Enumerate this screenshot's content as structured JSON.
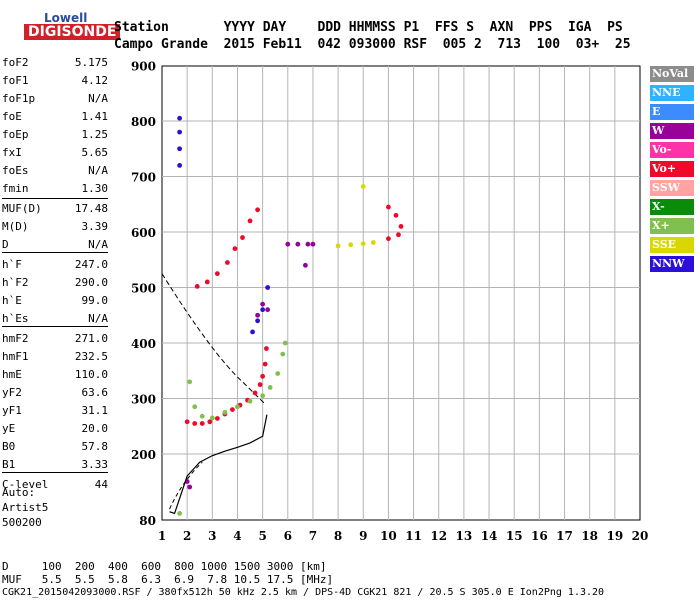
{
  "logo": {
    "top": "Lowell",
    "main": "DIGISONDE"
  },
  "header": {
    "line1": "Station       YYYY DAY    DDD HHMMSS P1  FFS S  AXN  PPS  IGA  PS",
    "line2": "Campo Grande  2015 Feb11  042 093000 RSF  005 2  713  100  03+  25"
  },
  "params": [
    {
      "name": "foF2",
      "value": "5.175"
    },
    {
      "name": "foF1",
      "value": "4.12"
    },
    {
      "name": "foF1p",
      "value": "N/A"
    },
    {
      "name": "foE",
      "value": "1.41"
    },
    {
      "name": "foEp",
      "value": "1.25"
    },
    {
      "name": "fxI",
      "value": "5.65"
    },
    {
      "name": "foEs",
      "value": "N/A"
    },
    {
      "name": "fmin",
      "value": "1.30"
    },
    {
      "name": "MUF(D)",
      "value": "17.48"
    },
    {
      "name": "M(D)",
      "value": "3.39"
    },
    {
      "name": "D",
      "value": "N/A"
    },
    {
      "name": "h`F",
      "value": "247.0"
    },
    {
      "name": "h`F2",
      "value": "290.0"
    },
    {
      "name": "h`E",
      "value": "99.0"
    },
    {
      "name": "h`Es",
      "value": "N/A"
    },
    {
      "name": "hmF2",
      "value": "271.0"
    },
    {
      "name": "hmF1",
      "value": "232.5"
    },
    {
      "name": "hmE",
      "value": "110.0"
    },
    {
      "name": "yF2",
      "value": "63.6"
    },
    {
      "name": "yF1",
      "value": "31.1"
    },
    {
      "name": "yE",
      "value": "20.0"
    },
    {
      "name": "B0",
      "value": "57.8"
    },
    {
      "name": "B1",
      "value": "3.33"
    },
    {
      "name": "C-level",
      "value": "44"
    }
  ],
  "auto": {
    "line1": "Auto:",
    "line2": "Artist5",
    "line3": "500200"
  },
  "legend": [
    {
      "label": "NoVal",
      "color": "#8c8c8c"
    },
    {
      "label": "NNE",
      "color": "#2fb2ff"
    },
    {
      "label": "E",
      "color": "#3c8cff"
    },
    {
      "label": "W",
      "color": "#9a009a"
    },
    {
      "label": "Vo-",
      "color": "#ff33a8"
    },
    {
      "label": "Vo+",
      "color": "#ee0a2a"
    },
    {
      "label": "SSW",
      "color": "#ffa3a3"
    },
    {
      "label": "X-",
      "color": "#0a8c0a"
    },
    {
      "label": "X+",
      "color": "#80c050"
    },
    {
      "label": "SSE",
      "color": "#d8d800"
    },
    {
      "label": "NNW",
      "color": "#2a10d8"
    }
  ],
  "footer": {
    "line1": "D     100  200  400  600  800 1000 1500 3000 [km]",
    "line2": "MUF   5.5  5.5  5.8  6.3  6.9  7.8 10.5 17.5 [MHz]",
    "line3": "CGK21_2015042093000.RSF / 380fx512h 50 kHz 2.5 km / DPS-4D CGK21 821 / 20.5 S 305.0 E Ion2Png 1.3.20"
  },
  "chart_data": {
    "type": "scatter",
    "title": "",
    "xlabel": "",
    "ylabel": "",
    "xlim": [
      1,
      20
    ],
    "ylim": [
      80,
      900
    ],
    "x_ticks": [
      1,
      2,
      3,
      4,
      5,
      6,
      7,
      8,
      9,
      10,
      11,
      12,
      13,
      14,
      15,
      16,
      17,
      18,
      19,
      20
    ],
    "y_ticks": [
      80,
      200,
      300,
      400,
      500,
      600,
      700,
      800,
      900
    ],
    "y_tick_labels": [
      "80",
      "200",
      "300",
      "400",
      "500",
      "600",
      "700",
      "800",
      "900"
    ],
    "grid": true,
    "series": [
      {
        "name": "Vo+",
        "color": "#ee0a2a",
        "points": [
          [
            2.0,
            258
          ],
          [
            2.3,
            255
          ],
          [
            2.6,
            255
          ],
          [
            2.9,
            258
          ],
          [
            3.2,
            264
          ],
          [
            3.5,
            272
          ],
          [
            3.8,
            280
          ],
          [
            4.1,
            288
          ],
          [
            4.4,
            297
          ],
          [
            4.7,
            310
          ],
          [
            4.9,
            325
          ],
          [
            5.0,
            340
          ],
          [
            5.1,
            362
          ],
          [
            5.15,
            390
          ],
          [
            2.4,
            502
          ],
          [
            2.8,
            510
          ],
          [
            3.2,
            525
          ],
          [
            3.6,
            545
          ],
          [
            3.9,
            570
          ],
          [
            4.2,
            590
          ],
          [
            4.5,
            620
          ],
          [
            4.8,
            640
          ],
          [
            10.0,
            645
          ],
          [
            10.3,
            630
          ],
          [
            10.5,
            610
          ],
          [
            10.4,
            595
          ],
          [
            10.0,
            588
          ]
        ]
      },
      {
        "name": "X+",
        "color": "#80c050",
        "points": [
          [
            2.1,
            330
          ],
          [
            2.3,
            285
          ],
          [
            2.6,
            268
          ],
          [
            3.0,
            265
          ],
          [
            3.5,
            275
          ],
          [
            4.0,
            285
          ],
          [
            4.5,
            295
          ],
          [
            5.0,
            305
          ],
          [
            5.3,
            320
          ],
          [
            5.6,
            345
          ],
          [
            5.8,
            380
          ],
          [
            5.9,
            400
          ],
          [
            1.7,
            92
          ]
        ]
      },
      {
        "name": "W",
        "color": "#9a009a",
        "points": [
          [
            2.0,
            150
          ],
          [
            2.1,
            140
          ],
          [
            6.0,
            578
          ],
          [
            6.4,
            578
          ],
          [
            6.8,
            578
          ],
          [
            7.0,
            578
          ],
          [
            6.7,
            540
          ],
          [
            5.0,
            470
          ],
          [
            5.2,
            460
          ],
          [
            4.8,
            450
          ]
        ]
      },
      {
        "name": "NNW",
        "color": "#2a10d8",
        "points": [
          [
            1.7,
            805
          ],
          [
            1.7,
            780
          ],
          [
            1.7,
            750
          ],
          [
            1.7,
            720
          ],
          [
            4.6,
            420
          ],
          [
            4.8,
            440
          ],
          [
            5.0,
            460
          ],
          [
            5.2,
            500
          ]
        ]
      },
      {
        "name": "SSE",
        "color": "#d8d800",
        "points": [
          [
            8.0,
            575
          ],
          [
            8.5,
            577
          ],
          [
            9.0,
            579
          ],
          [
            9.4,
            581
          ],
          [
            9.0,
            682
          ]
        ]
      },
      {
        "name": "Profile",
        "color": "#000000",
        "points": [
          [
            1.3,
            95
          ],
          [
            1.5,
            92
          ],
          [
            2.0,
            160
          ],
          [
            2.5,
            185
          ],
          [
            3.0,
            197
          ],
          [
            3.5,
            205
          ],
          [
            4.0,
            212
          ],
          [
            4.5,
            220
          ],
          [
            5.0,
            232
          ],
          [
            5.17,
            271
          ]
        ]
      }
    ]
  }
}
